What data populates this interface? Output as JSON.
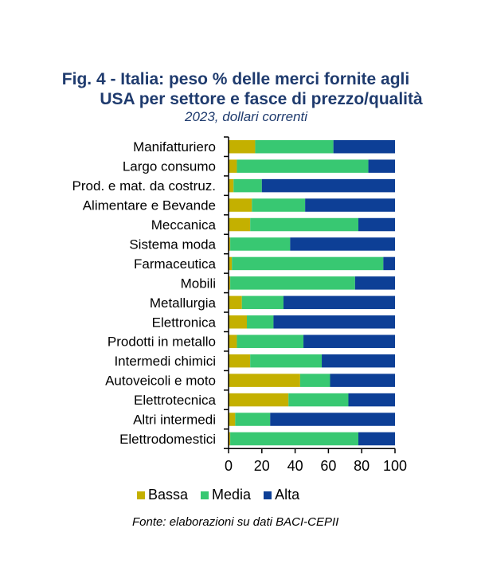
{
  "chart_data": {
    "type": "bar",
    "orientation": "horizontal",
    "stacked": true,
    "title": "Fig. 4 - Italia: peso % delle merci fornite agli USA per settore e fasce di prezzo/qualità",
    "title_lines": [
      "Fig. 4 - Italia: peso % delle merci fornite agli",
      "USA per settore e fasce di prezzo/qualità"
    ],
    "subtitle": "2023, dollari correnti",
    "xlabel": "",
    "ylabel": "",
    "xlim": [
      0,
      100
    ],
    "xticks": [
      "0",
      "20",
      "40",
      "60",
      "80",
      "100"
    ],
    "grid": false,
    "legend_position": "bottom",
    "categories": [
      "Manifatturiero",
      "Largo consumo",
      "Prod. e mat. da costruz.",
      "Alimentare e Bevande",
      "Meccanica",
      "Sistema moda",
      "Farmaceutica",
      "Mobili",
      "Metallurgia",
      "Elettronica",
      "Prodotti in metallo",
      "Intermedi chimici",
      "Autoveicoli e moto",
      "Elettrotecnica",
      "Altri intermedi",
      "Elettrodomestici"
    ],
    "series": [
      {
        "name": "Bassa",
        "color": "#c4b000",
        "values": [
          16,
          5,
          3,
          14,
          13,
          1,
          2,
          1,
          8,
          11,
          5,
          13,
          43,
          36,
          4,
          1
        ]
      },
      {
        "name": "Media",
        "color": "#38c872",
        "values": [
          47,
          79,
          17,
          32,
          65,
          36,
          91,
          75,
          25,
          16,
          40,
          43,
          18,
          36,
          21,
          77
        ]
      },
      {
        "name": "Alta",
        "color": "#0d3f96",
        "values": [
          37,
          16,
          80,
          54,
          22,
          63,
          7,
          24,
          67,
          73,
          55,
          44,
          39,
          28,
          75,
          22
        ]
      }
    ],
    "source": "Fonte: elaborazioni su dati BACI-CEPII"
  }
}
